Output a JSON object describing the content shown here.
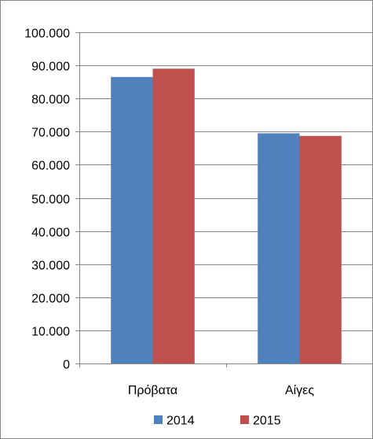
{
  "chart_data": {
    "type": "bar",
    "categories": [
      "Πρόβατα",
      "Αίγες"
    ],
    "series": [
      {
        "name": "2014",
        "values": [
          86500,
          69500
        ],
        "color": "#4F81BD"
      },
      {
        "name": "2015",
        "values": [
          89000,
          68700
        ],
        "color": "#C0504D"
      }
    ],
    "ylim": [
      0,
      100000
    ],
    "y_ticks": [
      {
        "value": 0,
        "label": "0"
      },
      {
        "value": 10000,
        "label": "10.000"
      },
      {
        "value": 20000,
        "label": "20.000"
      },
      {
        "value": 30000,
        "label": "30.000"
      },
      {
        "value": 40000,
        "label": "40.000"
      },
      {
        "value": 50000,
        "label": "50.000"
      },
      {
        "value": 60000,
        "label": "60.000"
      },
      {
        "value": 70000,
        "label": "70.000"
      },
      {
        "value": 80000,
        "label": "80.000"
      },
      {
        "value": 90000,
        "label": "90.000"
      },
      {
        "value": 100000,
        "label": "100.000"
      }
    ],
    "grid": true,
    "legend_position": "bottom"
  }
}
